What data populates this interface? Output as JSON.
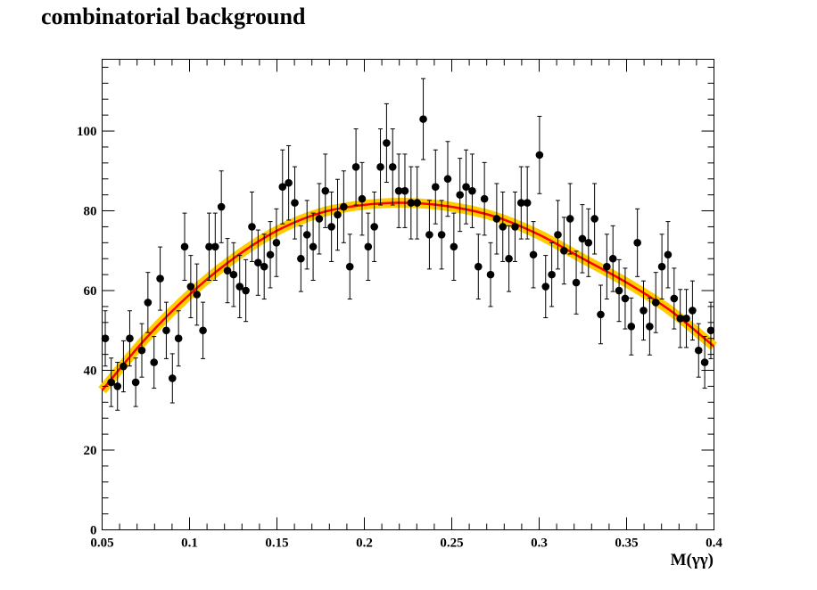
{
  "chart_data": {
    "type": "scatter",
    "title": "combinatorial background",
    "xlabel": "M(γγ)",
    "ylabel": "",
    "xlim": [
      0.05,
      0.4
    ],
    "ylim": [
      0,
      118
    ],
    "x_ticks": [
      0.05,
      0.1,
      0.15,
      0.2,
      0.25,
      0.3,
      0.35,
      0.4
    ],
    "x_tick_labels": [
      "0.05",
      "0.1",
      "0.15",
      "0.2",
      "0.25",
      "0.3",
      "0.35",
      "0.4"
    ],
    "y_ticks": [
      0,
      20,
      40,
      60,
      80,
      100
    ],
    "y_tick_labels": [
      "0",
      "20",
      "40",
      "60",
      "80",
      "100"
    ],
    "grid": false,
    "series": [
      {
        "marker": "circle",
        "color": "#000000",
        "error_bars": "sqrt(y)",
        "x": [
          0.0518,
          0.0552,
          0.0588,
          0.0622,
          0.0658,
          0.0692,
          0.0727,
          0.0762,
          0.0797,
          0.0832,
          0.0867,
          0.0902,
          0.0937,
          0.0972,
          0.1007,
          0.1042,
          0.1077,
          0.1112,
          0.1147,
          0.1182,
          0.1217,
          0.1252,
          0.1287,
          0.1322,
          0.1357,
          0.1392,
          0.1427,
          0.1462,
          0.1497,
          0.1532,
          0.1567,
          0.1602,
          0.1637,
          0.1672,
          0.1707,
          0.1742,
          0.1777,
          0.1812,
          0.1847,
          0.1882,
          0.1917,
          0.1952,
          0.1987,
          0.2022,
          0.2057,
          0.2092,
          0.2127,
          0.2162,
          0.2197,
          0.2232,
          0.2267,
          0.2302,
          0.2337,
          0.2372,
          0.2407,
          0.2442,
          0.2477,
          0.2512,
          0.2547,
          0.2582,
          0.2617,
          0.2652,
          0.2687,
          0.2722,
          0.2757,
          0.2792,
          0.2827,
          0.2862,
          0.2897,
          0.2932,
          0.2967,
          0.3002,
          0.3037,
          0.3072,
          0.3107,
          0.3142,
          0.3177,
          0.3212,
          0.3247,
          0.3282,
          0.3317,
          0.3352,
          0.3387,
          0.3422,
          0.3457,
          0.3492,
          0.3527,
          0.3562,
          0.3597,
          0.3632,
          0.3667,
          0.3702,
          0.3737,
          0.3772,
          0.3807,
          0.3842,
          0.3877,
          0.3912,
          0.3947,
          0.3982
        ],
        "y": [
          48,
          37,
          36,
          41,
          48,
          37,
          45,
          57,
          42,
          63,
          50,
          38,
          48,
          71,
          61,
          59,
          50,
          71,
          71,
          81,
          65,
          64,
          61,
          60,
          76,
          67,
          66,
          69,
          72,
          86,
          87,
          82,
          68,
          74,
          71,
          78,
          85,
          76,
          79,
          81,
          66,
          91,
          83,
          71,
          76,
          91,
          97,
          91,
          85,
          85,
          82,
          82,
          103,
          74,
          86,
          74,
          88,
          71,
          84,
          86,
          85,
          66,
          83,
          64,
          78,
          76,
          68,
          76,
          82,
          82,
          69,
          94,
          61,
          64,
          74,
          70,
          78,
          62,
          73,
          72,
          78,
          54,
          66,
          68,
          60,
          58,
          51,
          72,
          55,
          51,
          57,
          66,
          69,
          58,
          53,
          53,
          55,
          45,
          42,
          50
        ]
      }
    ],
    "fit": {
      "line_color": "#ff0000",
      "band_color": "#ffcc00",
      "x": [
        0.05,
        0.075,
        0.1,
        0.125,
        0.15,
        0.175,
        0.2,
        0.225,
        0.25,
        0.275,
        0.3,
        0.325,
        0.35,
        0.375,
        0.4
      ],
      "y": [
        35,
        48,
        59,
        68,
        75,
        79.5,
        81.5,
        82,
        81,
        78.5,
        74,
        68,
        62,
        55,
        46
      ]
    }
  }
}
